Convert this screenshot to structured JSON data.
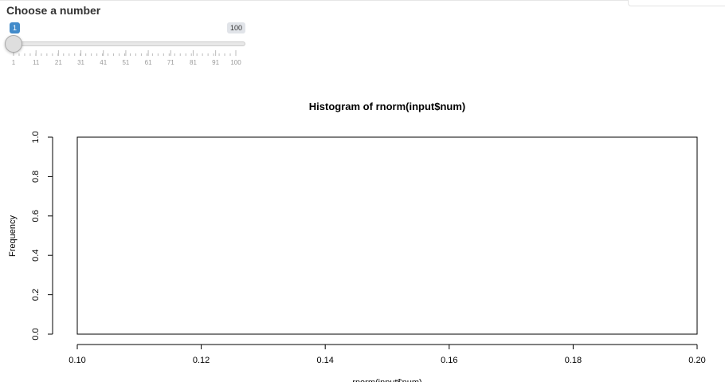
{
  "input": {
    "label": "Choose a number",
    "slider": {
      "value": 1,
      "min": 1,
      "max": 100,
      "value_label": "1",
      "max_label": "100",
      "tick_labels": [
        "1",
        "11",
        "21",
        "31",
        "41",
        "51",
        "61",
        "71",
        "81",
        "91",
        "100"
      ]
    }
  },
  "chart_data": {
    "type": "bar",
    "title": "Histogram of rnorm(input$num)",
    "xlabel": "rnorm(input$num)",
    "ylabel": "Frequency",
    "xlim": [
      0.1,
      0.2
    ],
    "ylim": [
      0.0,
      1.0
    ],
    "x_ticks": [
      "0.10",
      "0.12",
      "0.14",
      "0.16",
      "0.18",
      "0.20"
    ],
    "y_ticks": [
      "0.0",
      "0.2",
      "0.4",
      "0.6",
      "0.8",
      "1.0"
    ],
    "bins": [
      {
        "start": 0.1,
        "end": 0.2,
        "count": 1
      }
    ],
    "grid": false
  }
}
